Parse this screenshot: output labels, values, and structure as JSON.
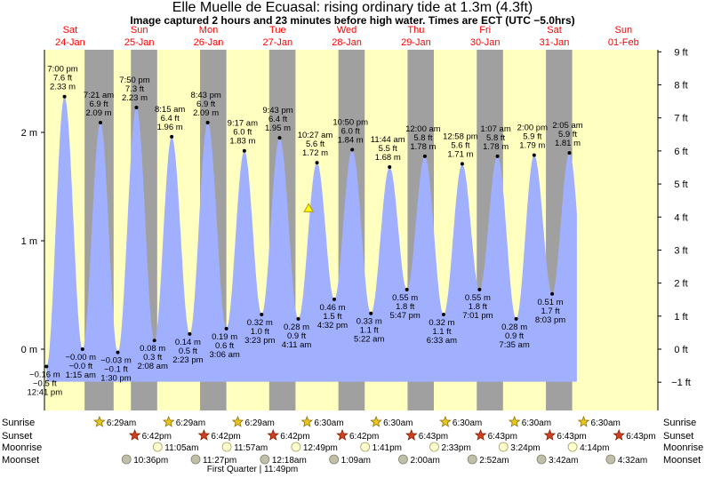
{
  "header": {
    "title": "Elle Muelle de Ecuasal: rising  ordinary tide at 1.3m (4.3ft)",
    "subtitle": "Image captured 2 hours and 23 minutes before high water. Times are ECT (UTC −5.0hrs)"
  },
  "colors": {
    "day": "#ffffc0",
    "night": "#a0a0a0",
    "water": "#a0b0ff",
    "date_label": "#ff0000"
  },
  "chart_data": {
    "type": "area",
    "title": "Elle Muelle de Ecuasal: rising  ordinary tide at 1.3m (4.3ft)",
    "days": [
      {
        "dow": "Sat",
        "date": "24-Jan"
      },
      {
        "dow": "Sun",
        "date": "25-Jan"
      },
      {
        "dow": "Mon",
        "date": "26-Jan"
      },
      {
        "dow": "Tue",
        "date": "27-Jan"
      },
      {
        "dow": "Wed",
        "date": "28-Jan"
      },
      {
        "dow": "Thu",
        "date": "29-Jan"
      },
      {
        "dow": "Fri",
        "date": "30-Jan"
      },
      {
        "dow": "Sat",
        "date": "31-Jan"
      },
      {
        "dow": "Sun",
        "date": "01-Feb"
      }
    ],
    "y_left": {
      "unit": "m",
      "ticks": [
        "0 m",
        "1 m",
        "2 m"
      ],
      "values": [
        0,
        1,
        2
      ]
    },
    "y_right": {
      "unit": "ft",
      "ticks": [
        "−1 ft",
        "0 ft",
        "1 ft",
        "2 ft",
        "3 ft",
        "4 ft",
        "5 ft",
        "6 ft",
        "7 ft",
        "8 ft",
        "9 ft"
      ],
      "values": [
        -1,
        0,
        1,
        2,
        3,
        4,
        5,
        6,
        7,
        8,
        9
      ]
    },
    "ylim_m": [
      -0.55,
      2.63
    ],
    "tides": [
      {
        "type": "low",
        "time": "12:41 pm",
        "m": "−0.16 m",
        "ft": "−0.5 ft",
        "day": 0.03,
        "h": -0.16
      },
      {
        "type": "high",
        "time": "7:00 pm",
        "m": "2.33 m",
        "ft": "7.6 ft",
        "day": 0.29,
        "h": 2.33
      },
      {
        "type": "low",
        "time": "1:15 am",
        "m": "−0.00 m",
        "ft": "−0.0 ft",
        "day": 0.55,
        "h": 0.0
      },
      {
        "type": "high",
        "time": "7:21 am",
        "m": "2.09 m",
        "ft": "6.9 ft",
        "day": 0.81,
        "h": 2.09
      },
      {
        "type": "low",
        "time": "1:30 pm",
        "m": "−0.03 m",
        "ft": "−0.1 ft",
        "day": 1.06,
        "h": -0.03
      },
      {
        "type": "high",
        "time": "7:50 pm",
        "m": "2.23 m",
        "ft": "7.3 ft",
        "day": 1.33,
        "h": 2.23
      },
      {
        "type": "low",
        "time": "2:08 am",
        "m": "0.08 m",
        "ft": "0.3 ft",
        "day": 1.59,
        "h": 0.08
      },
      {
        "type": "high",
        "time": "8:15 am",
        "m": "1.96 m",
        "ft": "6.4 ft",
        "day": 1.84,
        "h": 1.96
      },
      {
        "type": "low",
        "time": "2:23 pm",
        "m": "0.14 m",
        "ft": "0.5 ft",
        "day": 2.1,
        "h": 0.14
      },
      {
        "type": "high",
        "time": "8:43 pm",
        "m": "2.09 m",
        "ft": "6.9 ft",
        "day": 2.36,
        "h": 2.09
      },
      {
        "type": "low",
        "time": "3:06 am",
        "m": "0.19 m",
        "ft": "0.6 ft",
        "day": 2.63,
        "h": 0.19
      },
      {
        "type": "high",
        "time": "9:17 am",
        "m": "1.83 m",
        "ft": "6.0 ft",
        "day": 2.89,
        "h": 1.83
      },
      {
        "type": "low",
        "time": "3:23 pm",
        "m": "0.32 m",
        "ft": "1.0 ft",
        "day": 3.14,
        "h": 0.32
      },
      {
        "type": "high",
        "time": "9:43 pm",
        "m": "1.95 m",
        "ft": "6.4 ft",
        "day": 3.4,
        "h": 1.95
      },
      {
        "type": "low",
        "time": "4:11 am",
        "m": "0.28 m",
        "ft": "0.9 ft",
        "day": 3.67,
        "h": 0.28
      },
      {
        "type": "high",
        "time": "10:27 am",
        "m": "1.72 m",
        "ft": "5.6 ft",
        "day": 3.94,
        "h": 1.72
      },
      {
        "type": "low",
        "time": "4:32 pm",
        "m": "0.46 m",
        "ft": "1.5 ft",
        "day": 4.19,
        "h": 0.46
      },
      {
        "type": "high",
        "time": "10:50 pm",
        "m": "1.84 m",
        "ft": "6.0 ft",
        "day": 4.45,
        "h": 1.84
      },
      {
        "type": "low",
        "time": "5:22 am",
        "m": "0.33 m",
        "ft": "1.1 ft",
        "day": 4.72,
        "h": 0.33
      },
      {
        "type": "high",
        "time": "11:44 am",
        "m": "1.68 m",
        "ft": "5.5 ft",
        "day": 4.99,
        "h": 1.68
      },
      {
        "type": "low",
        "time": "5:47 pm",
        "m": "0.55 m",
        "ft": "1.8 ft",
        "day": 5.24,
        "h": 0.55
      },
      {
        "type": "high",
        "time": "12:00 am",
        "m": "1.78 m",
        "ft": "5.8 ft",
        "day": 5.5,
        "h": 1.78
      },
      {
        "type": "low",
        "time": "6:33 am",
        "m": "0.32 m",
        "ft": "1.1 ft",
        "day": 5.77,
        "h": 0.32
      },
      {
        "type": "high",
        "time": "12:58 pm",
        "m": "1.71 m",
        "ft": "5.6 ft",
        "day": 6.04,
        "h": 1.71
      },
      {
        "type": "low",
        "time": "7:01 pm",
        "m": "0.55 m",
        "ft": "1.8 ft",
        "day": 6.29,
        "h": 0.55
      },
      {
        "type": "high",
        "time": "1:07 am",
        "m": "1.78 m",
        "ft": "5.8 ft",
        "day": 6.55,
        "h": 1.78
      },
      {
        "type": "low",
        "time": "7:35 am",
        "m": "0.28 m",
        "ft": "0.9 ft",
        "day": 6.82,
        "h": 0.28
      },
      {
        "type": "high",
        "time": "2:00 pm",
        "m": "1.79 m",
        "ft": "5.9 ft",
        "day": 7.08,
        "h": 1.79
      },
      {
        "type": "low",
        "time": "8:03 pm",
        "m": "0.51 m",
        "ft": "1.7 ft",
        "day": 7.34,
        "h": 0.51
      },
      {
        "type": "high",
        "time": "2:05 am",
        "m": "1.81 m",
        "ft": "5.9 ft",
        "day": 7.59,
        "h": 1.81
      }
    ],
    "current": {
      "day": 3.82,
      "h": 1.3
    },
    "night_bands": [
      [
        0.58,
        1.0
      ],
      [
        1.25,
        1.63
      ],
      [
        2.25,
        2.63
      ],
      [
        3.25,
        3.63
      ],
      [
        4.25,
        4.63
      ],
      [
        5.25,
        5.63
      ],
      [
        6.25,
        6.63
      ],
      [
        7.25,
        7.63
      ]
    ],
    "sunrise": {
      "label": "Sunrise",
      "events": [
        {
          "day": 1.31,
          "time": "6:29am"
        },
        {
          "day": 2.31,
          "time": "6:29am"
        },
        {
          "day": 3.31,
          "time": "6:29am"
        },
        {
          "day": 4.31,
          "time": "6:30am"
        },
        {
          "day": 5.31,
          "time": "6:30am"
        },
        {
          "day": 6.31,
          "time": "6:30am"
        },
        {
          "day": 7.31,
          "time": "6:30am"
        },
        {
          "day": 8.31,
          "time": "6:30am"
        }
      ]
    },
    "sunset": {
      "label": "Sunset",
      "events": [
        {
          "day": 1.82,
          "time": "6:42pm"
        },
        {
          "day": 2.82,
          "time": "6:42pm"
        },
        {
          "day": 3.82,
          "time": "6:42pm"
        },
        {
          "day": 4.82,
          "time": "6:42pm"
        },
        {
          "day": 5.82,
          "time": "6:43pm"
        },
        {
          "day": 6.82,
          "time": "6:43pm"
        },
        {
          "day": 7.82,
          "time": "6:43pm"
        },
        {
          "day": 8.82,
          "time": "6:43pm"
        }
      ]
    },
    "moonrise": {
      "label": "Moonrise",
      "events": [
        {
          "day": 2.15,
          "time": "11:05am"
        },
        {
          "day": 3.15,
          "time": "11:57am"
        },
        {
          "day": 4.15,
          "time": "12:49pm"
        },
        {
          "day": 5.15,
          "time": "1:41pm"
        },
        {
          "day": 6.15,
          "time": "2:33pm"
        },
        {
          "day": 7.15,
          "time": "3:24pm"
        },
        {
          "day": 8.15,
          "time": "4:14pm"
        }
      ]
    },
    "moonset": {
      "label": "Moonset",
      "events": [
        {
          "day": 1.7,
          "time": "10:36pm"
        },
        {
          "day": 2.7,
          "time": "11:27pm"
        },
        {
          "day": 3.7,
          "time": "12:18am"
        },
        {
          "day": 4.7,
          "time": "1:09am"
        },
        {
          "day": 5.7,
          "time": "2:00am"
        },
        {
          "day": 6.7,
          "time": "2:52am"
        },
        {
          "day": 7.7,
          "time": "3:42am"
        },
        {
          "day": 8.7,
          "time": "4:32am"
        }
      ]
    },
    "moon_phase": "First Quarter | 11:49pm"
  }
}
